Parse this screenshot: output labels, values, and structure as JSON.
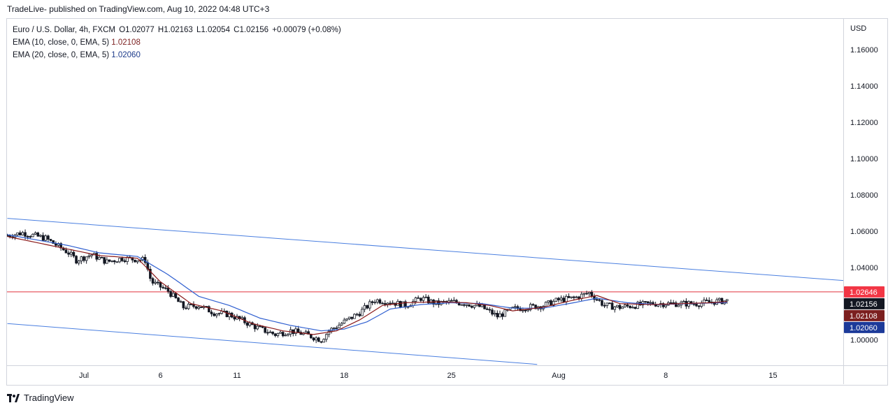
{
  "header": {
    "published": "TradeLive- published on TradingView.com, Aug 10, 2022 04:48 UTC+3"
  },
  "legend": {
    "symbol": "Euro / U.S. Dollar, 4h, FXCM",
    "open": "O1.02077",
    "high": "H1.02163",
    "low": "L1.02054",
    "close": "C1.02156",
    "change": "+0.00079 (+0.08%)",
    "ema10_label": "EMA (10, close, 0, EMA, 5)",
    "ema10_value": "1.02108",
    "ema20_label": "EMA (20, close, 0, EMA, 5)",
    "ema20_value": "1.02060"
  },
  "footer": {
    "brand": "TradingView"
  },
  "colors": {
    "up": "#ffffff",
    "down": "#131722",
    "ema10": "#8b1a1a",
    "ema20": "#2f5fd0",
    "channel": "#4a7fe0",
    "hline": "#e0323c",
    "grid_border": "#d1d4dc"
  },
  "chart_data": {
    "type": "candlestick",
    "currency": "USD",
    "y_ticks": [
      "1.16000",
      "1.14000",
      "1.12000",
      "1.10000",
      "1.08000",
      "1.06000",
      "1.04000",
      "1.02000",
      "1.00000"
    ],
    "ylim": [
      0.986,
      1.177
    ],
    "x_ticks": [
      {
        "label": "Jul",
        "day": 1
      },
      {
        "label": "6",
        "day": 6
      },
      {
        "label": "11",
        "day": 11
      },
      {
        "label": "18",
        "day": 18
      },
      {
        "label": "25",
        "day": 25
      },
      {
        "label": "Aug",
        "day": 32
      },
      {
        "label": "8",
        "day": 39
      },
      {
        "label": "15",
        "day": 46
      }
    ],
    "price_labels": [
      {
        "text": "1.02646",
        "value": 1.02646,
        "bg": "#f23645",
        "fg": "#ffffff"
      },
      {
        "text": "1.02156",
        "value": 1.02156,
        "bg": "#131722",
        "fg": "#ffffff"
      },
      {
        "text": "1.02108",
        "value": 1.02108,
        "bg": "#7b1f1f",
        "fg": "#ffffff"
      },
      {
        "text": "1.02060",
        "value": 1.0206,
        "bg": "#1c3a99",
        "fg": "#ffffff"
      }
    ],
    "horizontal_line": 1.02646,
    "channel_upper": [
      {
        "day": -4.0,
        "value": 1.067
      },
      {
        "day": 50.8,
        "value": 1.0326
      }
    ],
    "channel_lower": [
      {
        "day": -4.0,
        "value": 1.009
      },
      {
        "day": 30.6,
        "value": 0.9865
      }
    ],
    "close_path": [
      [
        -4.0,
        1.0575
      ],
      [
        -3.0,
        1.059
      ],
      [
        -1.5,
        1.056
      ],
      [
        0.0,
        1.048
      ],
      [
        0.5,
        1.044
      ],
      [
        1.5,
        1.047
      ],
      [
        2.5,
        1.043
      ],
      [
        3.5,
        1.045
      ],
      [
        5.0,
        1.044
      ],
      [
        5.4,
        1.032
      ],
      [
        6.5,
        1.027
      ],
      [
        7.5,
        1.018
      ],
      [
        8.5,
        1.019
      ],
      [
        9.5,
        1.015
      ],
      [
        10.5,
        1.014
      ],
      [
        11.5,
        1.01
      ],
      [
        12.5,
        1.006
      ],
      [
        13.5,
        1.003
      ],
      [
        14.5,
        1.005
      ],
      [
        15.5,
        1.003
      ],
      [
        16.5,
        1.0
      ],
      [
        17.0,
        1.005
      ],
      [
        18.0,
        1.01
      ],
      [
        19.0,
        1.015
      ],
      [
        20.0,
        1.022
      ],
      [
        21.0,
        1.021
      ],
      [
        22.0,
        1.019
      ],
      [
        23.0,
        1.023
      ],
      [
        24.0,
        1.02
      ],
      [
        25.0,
        1.021
      ],
      [
        26.0,
        1.02
      ],
      [
        27.0,
        1.018
      ],
      [
        28.0,
        1.013
      ],
      [
        29.0,
        1.017
      ],
      [
        30.0,
        1.018
      ],
      [
        31.0,
        1.019
      ],
      [
        32.0,
        1.022
      ],
      [
        33.0,
        1.023
      ],
      [
        34.0,
        1.026
      ],
      [
        35.0,
        1.019
      ],
      [
        36.0,
        1.018
      ],
      [
        37.0,
        1.019
      ],
      [
        38.0,
        1.02
      ],
      [
        39.0,
        1.02
      ],
      [
        40.0,
        1.02
      ],
      [
        41.0,
        1.02
      ],
      [
        42.0,
        1.021
      ],
      [
        43.0,
        1.0216
      ]
    ],
    "ema10_path": [
      [
        -4.0,
        1.057
      ],
      [
        0.0,
        1.05
      ],
      [
        2.0,
        1.0465
      ],
      [
        4.5,
        1.045
      ],
      [
        6.0,
        1.032
      ],
      [
        8.0,
        1.02
      ],
      [
        10.0,
        1.016
      ],
      [
        12.0,
        1.009
      ],
      [
        14.0,
        1.005
      ],
      [
        16.0,
        1.003
      ],
      [
        17.5,
        1.005
      ],
      [
        19.0,
        1.011
      ],
      [
        20.5,
        1.019
      ],
      [
        22.0,
        1.0205
      ],
      [
        24.0,
        1.021
      ],
      [
        26.0,
        1.0205
      ],
      [
        27.5,
        1.019
      ],
      [
        29.0,
        1.016
      ],
      [
        31.0,
        1.018
      ],
      [
        33.0,
        1.022
      ],
      [
        34.5,
        1.0245
      ],
      [
        36.0,
        1.02
      ],
      [
        38.0,
        1.0195
      ],
      [
        40.0,
        1.02
      ],
      [
        42.0,
        1.0205
      ],
      [
        43.0,
        1.0211
      ]
    ],
    "ema20_path": [
      [
        -4.0,
        1.058
      ],
      [
        0.0,
        1.052
      ],
      [
        2.0,
        1.048
      ],
      [
        4.5,
        1.046
      ],
      [
        6.5,
        1.036
      ],
      [
        8.5,
        1.024
      ],
      [
        10.5,
        1.019
      ],
      [
        12.5,
        1.012
      ],
      [
        14.5,
        1.008
      ],
      [
        16.5,
        1.005
      ],
      [
        18.0,
        1.006
      ],
      [
        19.5,
        1.01
      ],
      [
        21.0,
        1.017
      ],
      [
        23.0,
        1.0195
      ],
      [
        25.0,
        1.0205
      ],
      [
        27.0,
        1.02
      ],
      [
        29.0,
        1.0175
      ],
      [
        31.0,
        1.0175
      ],
      [
        33.0,
        1.0205
      ],
      [
        34.5,
        1.023
      ],
      [
        36.5,
        1.0205
      ],
      [
        38.5,
        1.0195
      ],
      [
        40.5,
        1.02
      ],
      [
        43.0,
        1.0206
      ]
    ],
    "candles_per_day": 6,
    "last_day": 43.0
  }
}
